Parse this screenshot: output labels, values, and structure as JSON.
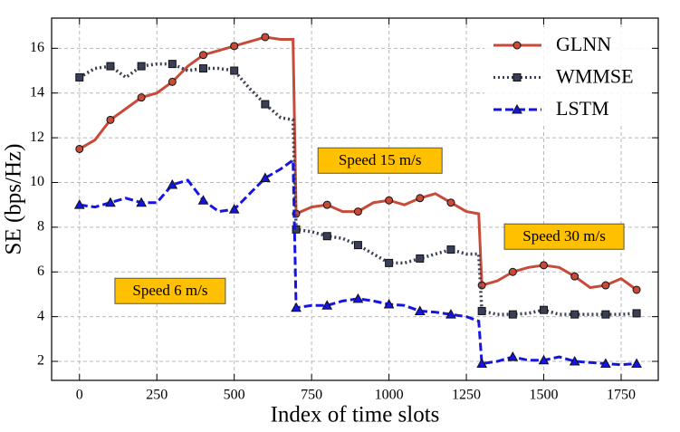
{
  "chart_data": {
    "type": "line",
    "xlabel": "Index of time slots",
    "ylabel": "SE (bps/Hz)",
    "x": [
      0,
      50,
      100,
      150,
      200,
      250,
      300,
      350,
      400,
      450,
      500,
      550,
      600,
      650,
      690,
      700,
      750,
      800,
      850,
      900,
      950,
      1000,
      1050,
      1100,
      1150,
      1200,
      1250,
      1290,
      1300,
      1350,
      1400,
      1450,
      1500,
      1550,
      1600,
      1650,
      1700,
      1750,
      1800
    ],
    "series": [
      {
        "name": "GLNN",
        "color": "#c84b3a",
        "linestyle": "solid",
        "marker": "circle",
        "values": [
          11.5,
          11.9,
          12.8,
          13.3,
          13.8,
          14.0,
          14.5,
          15.2,
          15.7,
          15.9,
          16.1,
          16.3,
          16.5,
          16.4,
          16.4,
          8.6,
          8.9,
          9.0,
          8.7,
          8.7,
          9.1,
          9.2,
          9.0,
          9.3,
          9.5,
          9.1,
          8.7,
          8.6,
          5.4,
          5.6,
          6.0,
          6.2,
          6.3,
          6.2,
          5.8,
          5.3,
          5.4,
          5.7,
          5.2
        ]
      },
      {
        "name": "WMMSE",
        "color": "#3a3f55",
        "linestyle": "dotted",
        "marker": "square",
        "values": [
          14.7,
          15.1,
          15.2,
          14.7,
          15.2,
          15.3,
          15.3,
          15.0,
          15.1,
          15.1,
          15.0,
          14.2,
          13.5,
          12.9,
          12.8,
          7.9,
          7.8,
          7.6,
          7.5,
          7.2,
          6.8,
          6.4,
          6.4,
          6.6,
          6.8,
          7.0,
          6.8,
          6.8,
          4.25,
          4.1,
          4.1,
          4.15,
          4.3,
          4.1,
          4.1,
          4.1,
          4.1,
          4.1,
          4.15
        ]
      },
      {
        "name": "LSTM",
        "color": "#1515e0",
        "linestyle": "dashed",
        "marker": "triangle",
        "values": [
          9.0,
          8.9,
          9.1,
          9.3,
          9.1,
          9.1,
          9.9,
          10.1,
          9.2,
          8.7,
          8.8,
          9.5,
          10.2,
          10.6,
          11.0,
          4.4,
          4.5,
          4.5,
          4.7,
          4.8,
          4.7,
          4.55,
          4.5,
          4.25,
          4.2,
          4.1,
          4.0,
          3.8,
          1.9,
          2.0,
          2.2,
          2.05,
          2.05,
          2.2,
          2.0,
          1.95,
          1.9,
          1.85,
          1.9
        ]
      }
    ],
    "annotations": [
      "Speed 6 m/s",
      "Speed 15 m/s",
      "Speed 30 m/s"
    ],
    "xlim": [
      -90,
      1870
    ],
    "ylim": [
      1.15,
      17.35
    ],
    "xticks": [
      0,
      250,
      500,
      750,
      1000,
      1250,
      1500,
      1750
    ],
    "yticks": [
      2,
      4,
      6,
      8,
      10,
      12,
      14,
      16
    ],
    "grid": true,
    "legend": "upper right"
  }
}
